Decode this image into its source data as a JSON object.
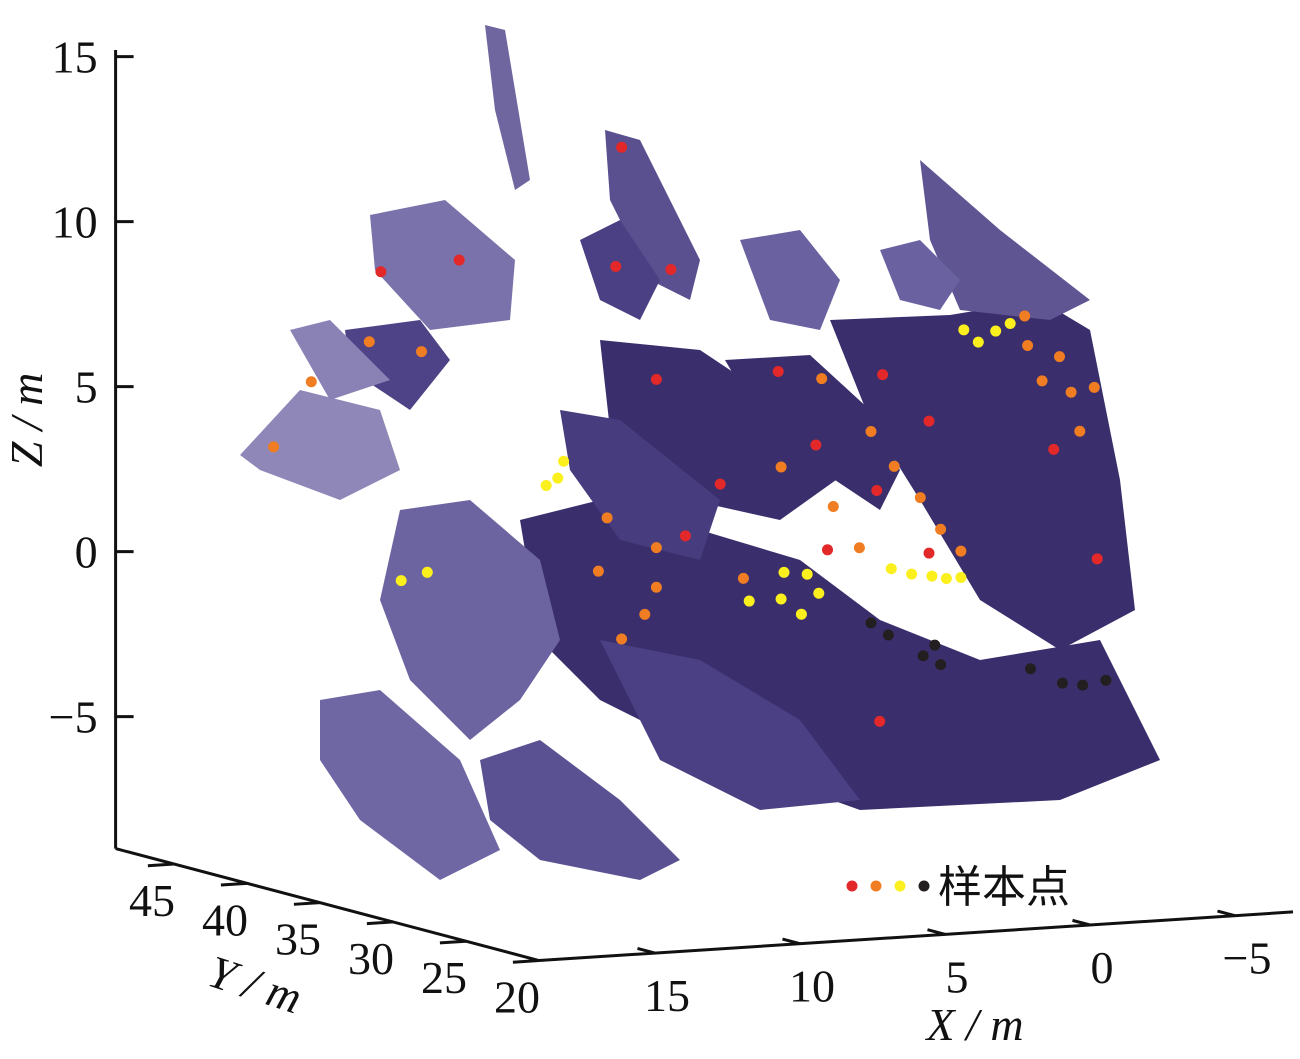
{
  "chart_data": {
    "type": "scatter3d",
    "xlabel": "X / m",
    "ylabel": "Y / m",
    "zlabel": "Z / m",
    "xlim": [
      -7,
      19
    ],
    "ylim": [
      20,
      49
    ],
    "zlim": [
      -9,
      15.2
    ],
    "xticks": [
      15,
      10,
      5,
      0,
      {
        "value": -5,
        "label": "−5"
      }
    ],
    "yticks": [
      45,
      40,
      35,
      30,
      25,
      20
    ],
    "zticks": [
      15,
      10,
      5,
      0,
      {
        "value": -5,
        "label": "−5"
      }
    ],
    "legend_label": "样本点",
    "series": [
      {
        "color": "#e3282a",
        "x": [
          8.6,
          16.9,
          14.2,
          8.8,
          6.9,
          7.4,
          3.2,
          -0.4,
          -2.0,
          1.9,
          -6.3,
          5.2,
          -0.2,
          6.4,
          1.5,
          -2.0,
          -7.8,
          -0.3
        ],
        "y": [
          35,
          35,
          35,
          35,
          35,
          35,
          35,
          35,
          35,
          35,
          35,
          35,
          35,
          35,
          35,
          35,
          35,
          35
        ],
        "z": [
          13.3,
          10.0,
          10.2,
          9.7,
          9.5,
          6.2,
          6.2,
          5.9,
          4.4,
          3.9,
          3.3,
          2.9,
          2.4,
          1.4,
          0.7,
          0.4,
          -0.1,
          -4.6
        ]
      },
      {
        "color": "#f07d22",
        "x": [
          17.3,
          15.5,
          19.3,
          20.6,
          1.7,
          -5.3,
          -5.4,
          -6.5,
          -5.9,
          -6.9,
          -7.7,
          -7.2,
          0,
          -0.8,
          3.1,
          -1.7,
          1.3,
          -2.4,
          9.1,
          7.4,
          0.4,
          -3.1,
          9.4,
          4.4,
          7.4,
          7.8,
          8.6
        ],
        "y": [
          35,
          35,
          35,
          35,
          35,
          35,
          35,
          35,
          35,
          35,
          35,
          35,
          35,
          35,
          35,
          35,
          35,
          35,
          35,
          35,
          35,
          35,
          35,
          35,
          35,
          35,
          35
        ],
        "z": [
          7.9,
          7.5,
          6.8,
          4.9,
          5.9,
          7.4,
          6.5,
          6.1,
          5.4,
          5.0,
          5.1,
          3.8,
          4.2,
          3.1,
          3.3,
          2.1,
          2.0,
          1.1,
          2.1,
          1.1,
          0.7,
          0.4,
          0.5,
          0.0,
          -0.1,
          -0.9,
          -1.6
        ]
      },
      {
        "color": "#fbf01e",
        "x": [
          -3.2,
          -3.7,
          -4.3,
          -4.8,
          10.6,
          10.8,
          11.2,
          16.2,
          15.3,
          3.0,
          2.2,
          -0.7,
          -1.4,
          -2.1,
          -2.6,
          -3.1,
          4.2,
          3.1,
          1.8,
          2.4
        ],
        "y": [
          35,
          35,
          35,
          35,
          35,
          35,
          35,
          35,
          35,
          35,
          35,
          35,
          35,
          35,
          35,
          35,
          35,
          35,
          35,
          35
        ],
        "z": [
          7.1,
          6.7,
          7.0,
          7.2,
          3.9,
          3.4,
          3.2,
          0.6,
          0.8,
          0.1,
          0.0,
          0.0,
          -0.2,
          -0.3,
          -0.4,
          -0.4,
          -0.7,
          -0.7,
          -0.6,
          -1.2
        ]
      },
      {
        "color": "#231f20",
        "x": [
          0.0,
          -0.6,
          -2.2,
          -1.8,
          -2.4,
          -5.5,
          -6.6,
          -7.3,
          -8.1
        ],
        "y": [
          35,
          35,
          35,
          35,
          35,
          35,
          35,
          35,
          35
        ],
        "z": [
          -1.6,
          -2.0,
          -2.4,
          -2.7,
          -3.0,
          -3.3,
          -3.8,
          -3.9,
          -3.8
        ]
      }
    ]
  }
}
